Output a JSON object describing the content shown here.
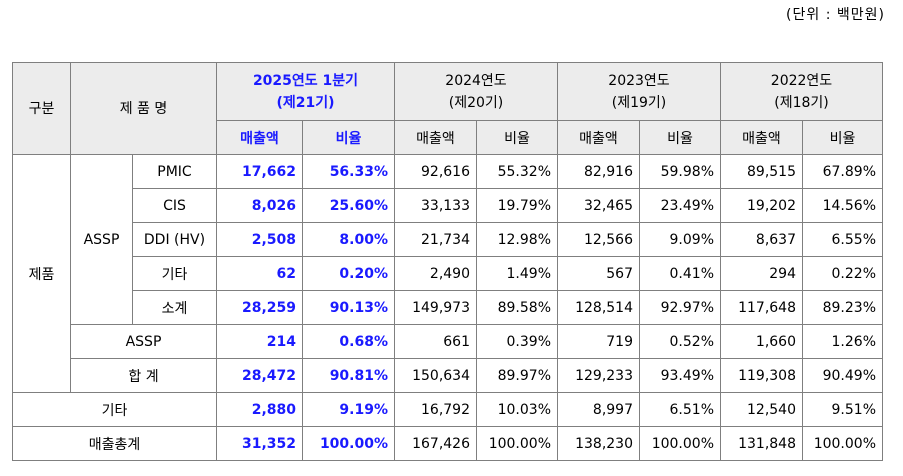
{
  "unit_note": "(단위 : 백만원)",
  "header": {
    "category": "구분",
    "product_name": "제 품 명",
    "periods": [
      {
        "line1": "2025연도 1분기",
        "line2": "(제21기)"
      },
      {
        "line1": "2024연도",
        "line2": "(제20기)"
      },
      {
        "line1": "2023연도",
        "line2": "(제19기)"
      },
      {
        "line1": "2022연도",
        "line2": "(제18기)"
      }
    ],
    "sales": "매출액",
    "ratio": "비율"
  },
  "groups": {
    "products": "제품",
    "assp": "ASSP"
  },
  "rows": [
    {
      "label": "PMIC",
      "values": [
        "17,662",
        "56.33%",
        "92,616",
        "55.32%",
        "82,916",
        "59.98%",
        "89,515",
        "67.89%"
      ]
    },
    {
      "label": "CIS",
      "values": [
        "8,026",
        "25.60%",
        "33,133",
        "19.79%",
        "32,465",
        "23.49%",
        "19,202",
        "14.56%"
      ]
    },
    {
      "label": "DDI (HV)",
      "values": [
        "2,508",
        "8.00%",
        "21,734",
        "12.98%",
        "12,566",
        "9.09%",
        "8,637",
        "6.55%"
      ]
    },
    {
      "label": "기타",
      "values": [
        "62",
        "0.20%",
        "2,490",
        "1.49%",
        "567",
        "0.41%",
        "294",
        "0.22%"
      ]
    },
    {
      "label": "소계",
      "values": [
        "28,259",
        "90.13%",
        "149,973",
        "89.58%",
        "128,514",
        "92.97%",
        "117,648",
        "89.23%"
      ]
    },
    {
      "label": "ASSP",
      "values": [
        "214",
        "0.68%",
        "661",
        "0.39%",
        "719",
        "0.52%",
        "1,660",
        "1.26%"
      ]
    },
    {
      "label": "합 계",
      "values": [
        "28,472",
        "90.81%",
        "150,634",
        "89.97%",
        "129,233",
        "93.49%",
        "119,308",
        "90.49%"
      ]
    },
    {
      "label": "기타",
      "values": [
        "2,880",
        "9.19%",
        "16,792",
        "10.03%",
        "8,997",
        "6.51%",
        "12,540",
        "9.51%"
      ]
    },
    {
      "label": "매출총계",
      "values": [
        "31,352",
        "100.00%",
        "167,426",
        "100.00%",
        "138,230",
        "100.00%",
        "131,848",
        "100.00%"
      ]
    }
  ],
  "colors": {
    "current_period": "#1a1aff",
    "header_bg": "#ececec",
    "border": "#7f7f7f"
  }
}
